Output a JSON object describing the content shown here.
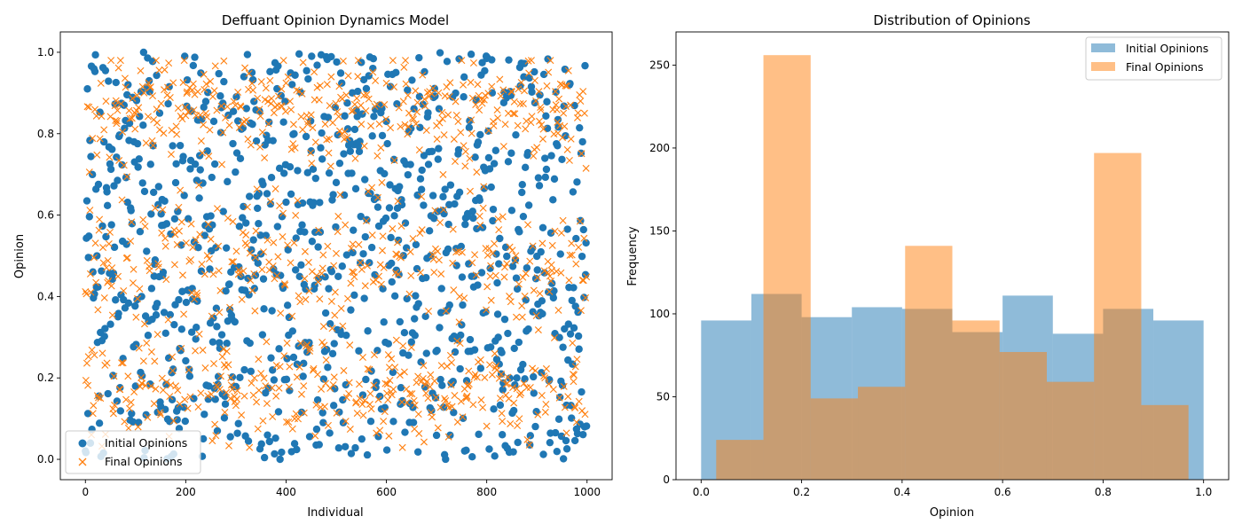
{
  "colors": {
    "initial": "#1f77b4",
    "final": "#ff7f0e",
    "hist_initial": "#1f77b4",
    "hist_final": "#ff7f0e"
  },
  "chart_data": [
    {
      "type": "scatter",
      "title": "Deffuant Opinion Dynamics Model",
      "xlabel": "Individual",
      "ylabel": "Opinion",
      "xlim": [
        -50,
        1050
      ],
      "ylim": [
        -0.05,
        1.05
      ],
      "xticks": [
        0,
        200,
        400,
        600,
        800,
        1000
      ],
      "yticks": [
        0.0,
        0.2,
        0.4,
        0.6,
        0.8,
        1.0
      ],
      "xtick_labels": [
        "0",
        "200",
        "400",
        "600",
        "800",
        "1000"
      ],
      "ytick_labels": [
        "0.0",
        "0.2",
        "0.4",
        "0.6",
        "0.8",
        "1.0"
      ],
      "legend_position": "lower-left",
      "n_individuals": 1000,
      "note": "Individual points approximated: Initial Opinions ~ uniform on [0,1]; Final Opinions clustered near 0.17, 0.48, 0.86 plus uniform band",
      "series": [
        {
          "name": "Initial Opinions",
          "marker": "circle",
          "distribution": {
            "kind": "uniform",
            "min": 0.0,
            "max": 1.0
          }
        },
        {
          "name": "Final Opinions",
          "marker": "x",
          "distribution": {
            "kind": "mixture",
            "components": [
              {
                "weight": 0.26,
                "center": 0.17,
                "spread": 0.055
              },
              {
                "weight": 0.22,
                "center": 0.48,
                "spread": 0.07
              },
              {
                "weight": 0.3,
                "center": 0.86,
                "spread": 0.055
              },
              {
                "weight": 0.22,
                "uniform": [
                  0.02,
                  0.98
                ]
              }
            ]
          }
        }
      ]
    },
    {
      "type": "histogram",
      "title": "Distribution of Opinions",
      "xlabel": "Opinion",
      "ylabel": "Frequency",
      "xlim": [
        -0.05,
        1.05
      ],
      "ylim": [
        0,
        270
      ],
      "xticks": [
        0.0,
        0.2,
        0.4,
        0.6,
        0.8,
        1.0
      ],
      "yticks": [
        0,
        50,
        100,
        150,
        200,
        250
      ],
      "xtick_labels": [
        "0.0",
        "0.2",
        "0.4",
        "0.6",
        "0.8",
        "1.0"
      ],
      "ytick_labels": [
        "0",
        "50",
        "100",
        "150",
        "200",
        "250"
      ],
      "legend_position": "top-right",
      "series": [
        {
          "name": "Initial Opinions",
          "bin_edges": [
            0.0,
            0.1,
            0.2,
            0.3,
            0.4,
            0.5,
            0.6,
            0.7,
            0.8,
            0.9,
            1.0
          ],
          "counts": [
            96,
            112,
            98,
            104,
            103,
            89,
            111,
            88,
            103,
            96
          ]
        },
        {
          "name": "Final Opinions",
          "bin_edges": [
            0.03,
            0.124,
            0.218,
            0.312,
            0.406,
            0.5,
            0.594,
            0.688,
            0.782,
            0.876,
            0.97
          ],
          "counts": [
            24,
            256,
            49,
            56,
            141,
            96,
            77,
            59,
            197,
            45
          ]
        }
      ]
    }
  ]
}
